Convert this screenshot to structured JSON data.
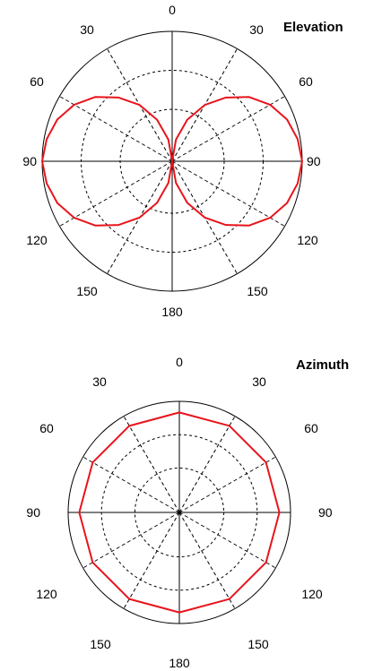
{
  "chart_data": [
    {
      "type": "polar-line",
      "title": "Elevation",
      "angle_labels": [
        "0",
        "30",
        "60",
        "90",
        "120",
        "150",
        "180",
        "150",
        "120",
        "90",
        "60",
        "30"
      ],
      "angle_values": [
        0,
        30,
        60,
        90,
        120,
        150,
        180,
        210,
        240,
        270,
        300,
        330
      ],
      "radial_range": [
        0,
        1
      ],
      "rings": [
        0.4,
        0.7,
        1.0
      ],
      "grid": true,
      "series": [
        {
          "angles": [
            0,
            10,
            20,
            30,
            40,
            50,
            60,
            70,
            80,
            90,
            100,
            110,
            120,
            130,
            140,
            150,
            160,
            170,
            180,
            190,
            200,
            210,
            220,
            230,
            240,
            250,
            260,
            270,
            280,
            290,
            300,
            310,
            320,
            330,
            340,
            350,
            360
          ],
          "values": [
            0.0,
            0.17,
            0.34,
            0.5,
            0.64,
            0.77,
            0.87,
            0.94,
            0.98,
            1.0,
            0.98,
            0.94,
            0.87,
            0.77,
            0.64,
            0.5,
            0.34,
            0.17,
            0.0,
            0.17,
            0.34,
            0.5,
            0.64,
            0.77,
            0.87,
            0.94,
            0.98,
            1.0,
            0.98,
            0.94,
            0.87,
            0.77,
            0.64,
            0.5,
            0.34,
            0.17,
            0.0
          ],
          "color": "#e8141c"
        }
      ]
    },
    {
      "type": "polar-line",
      "title": "Azimuth",
      "angle_labels": [
        "0",
        "30",
        "60",
        "90",
        "120",
        "150",
        "180",
        "150",
        "120",
        "90",
        "60",
        "30"
      ],
      "angle_values": [
        0,
        30,
        60,
        90,
        120,
        150,
        180,
        210,
        240,
        270,
        300,
        330
      ],
      "radial_range": [
        0,
        1
      ],
      "rings": [
        0.4,
        0.7,
        1.0
      ],
      "grid": true,
      "series": [
        {
          "angles": [
            0,
            30,
            60,
            90,
            120,
            150,
            180,
            210,
            240,
            270,
            300,
            330,
            360
          ],
          "values": [
            0.9,
            0.9,
            0.9,
            0.9,
            0.9,
            0.9,
            0.9,
            0.9,
            0.9,
            0.9,
            0.9,
            0.9,
            0.9
          ],
          "color": "#e8141c"
        }
      ]
    }
  ]
}
